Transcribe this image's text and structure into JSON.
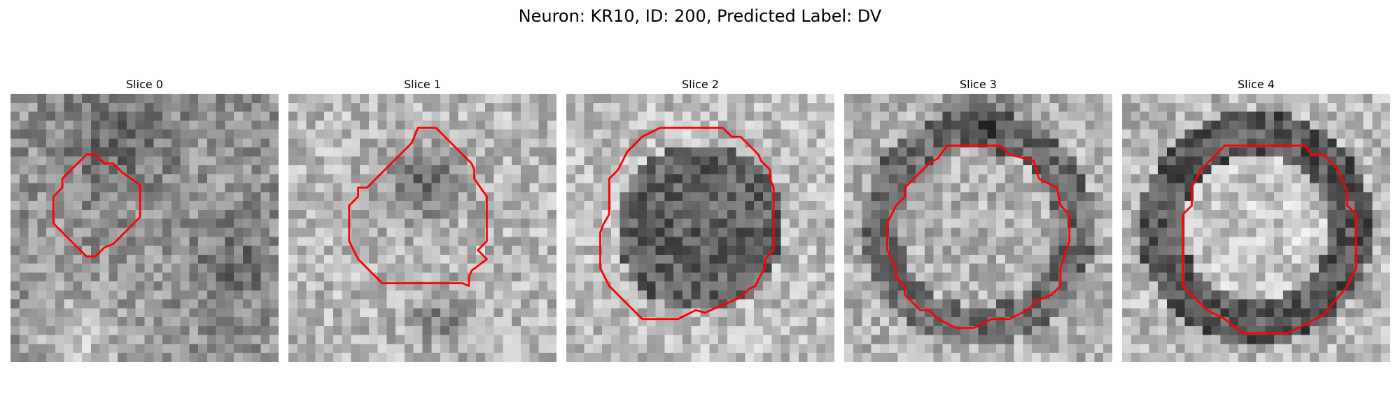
{
  "figure": {
    "title": "Neuron: KR10, ID: 200, Predicted Label: DV"
  },
  "colors": {
    "contour": "#ff0000",
    "background": "#ffffff"
  },
  "image_grid": {
    "pixels_per_side": 30,
    "colormap": "gray"
  },
  "panels": [
    {
      "title": "Slice 0",
      "contour": [
        [
          8.5,
          6.8
        ],
        [
          9.5,
          6.8
        ],
        [
          10.5,
          7.8
        ],
        [
          11.5,
          7.8
        ],
        [
          12.5,
          8.8
        ],
        [
          14.5,
          10.2
        ],
        [
          14.5,
          13.8
        ],
        [
          11.5,
          16.8
        ],
        [
          10.5,
          17.2
        ],
        [
          9.5,
          18.2
        ],
        [
          8.5,
          18.2
        ],
        [
          5.5,
          15.2
        ],
        [
          4.8,
          14.5
        ],
        [
          4.8,
          11.5
        ],
        [
          5.8,
          10.5
        ],
        [
          5.8,
          9.5
        ]
      ]
    },
    {
      "title": "Slice 1",
      "contour": [
        [
          14.5,
          3.8
        ],
        [
          16.5,
          3.8
        ],
        [
          20.5,
          7.8
        ],
        [
          20.8,
          8.5
        ],
        [
          20.8,
          9.5
        ],
        [
          22.2,
          11.5
        ],
        [
          22.2,
          16.5
        ],
        [
          21.5,
          17.2
        ],
        [
          21.2,
          17.5
        ],
        [
          22.2,
          18.5
        ],
        [
          20.5,
          19.8
        ],
        [
          20.2,
          20.5
        ],
        [
          20.2,
          21.5
        ],
        [
          19.5,
          21.2
        ],
        [
          10.5,
          21.2
        ],
        [
          8.8,
          19.5
        ],
        [
          7.8,
          18.5
        ],
        [
          6.8,
          16.5
        ],
        [
          6.8,
          12.5
        ],
        [
          7.8,
          11.5
        ],
        [
          7.8,
          10.5
        ],
        [
          8.8,
          10.5
        ],
        [
          13.8,
          5.5
        ]
      ]
    },
    {
      "title": "Slice 2",
      "contour": [
        [
          10.5,
          3.8
        ],
        [
          17.5,
          3.8
        ],
        [
          18.5,
          4.8
        ],
        [
          19.5,
          4.8
        ],
        [
          21.5,
          6.8
        ],
        [
          21.8,
          7.5
        ],
        [
          22.8,
          8.5
        ],
        [
          22.8,
          9.5
        ],
        [
          23.2,
          10.5
        ],
        [
          23.2,
          17.5
        ],
        [
          22.2,
          18.5
        ],
        [
          22.2,
          19.5
        ],
        [
          21.5,
          20.8
        ],
        [
          21.2,
          21.5
        ],
        [
          20.5,
          21.8
        ],
        [
          19.5,
          22.8
        ],
        [
          18.5,
          23.2
        ],
        [
          15.5,
          24.5
        ],
        [
          14.5,
          24.2
        ],
        [
          12.5,
          25.2
        ],
        [
          8.5,
          25.2
        ],
        [
          7.5,
          24.2
        ],
        [
          4.8,
          21.5
        ],
        [
          3.8,
          19.5
        ],
        [
          3.8,
          15.5
        ],
        [
          4.2,
          14.5
        ],
        [
          4.8,
          13.5
        ],
        [
          4.8,
          9.5
        ],
        [
          5.8,
          8.5
        ],
        [
          6.8,
          6.5
        ],
        [
          8.5,
          4.8
        ]
      ]
    },
    {
      "title": "Slice 3",
      "contour": [
        [
          11.5,
          5.8
        ],
        [
          17.5,
          5.8
        ],
        [
          18.5,
          6.8
        ],
        [
          21.2,
          7.5
        ],
        [
          21.8,
          9.5
        ],
        [
          23.8,
          10.5
        ],
        [
          24.2,
          12.5
        ],
        [
          25.2,
          13.5
        ],
        [
          25.2,
          16.5
        ],
        [
          24.2,
          19.5
        ],
        [
          24.2,
          21.5
        ],
        [
          23.2,
          22.5
        ],
        [
          21.5,
          23.2
        ],
        [
          20.5,
          24.2
        ],
        [
          18.5,
          25.2
        ],
        [
          16.5,
          25.2
        ],
        [
          14.5,
          26.2
        ],
        [
          12.5,
          26.2
        ],
        [
          10.5,
          25.2
        ],
        [
          9.5,
          24.2
        ],
        [
          8.5,
          24.2
        ],
        [
          6.8,
          22.5
        ],
        [
          6.8,
          21.5
        ],
        [
          5.8,
          20.5
        ],
        [
          5.8,
          19.5
        ],
        [
          4.8,
          17.5
        ],
        [
          4.8,
          14.5
        ],
        [
          5.8,
          12.5
        ],
        [
          6.8,
          11.5
        ],
        [
          6.8,
          10.5
        ],
        [
          7.8,
          9.5
        ],
        [
          8.8,
          8.5
        ],
        [
          9.5,
          7.8
        ],
        [
          10.5,
          7.2
        ]
      ]
    },
    {
      "title": "Slice 4",
      "contour": [
        [
          11.5,
          5.8
        ],
        [
          20.5,
          5.8
        ],
        [
          21.2,
          6.8
        ],
        [
          22.5,
          6.8
        ],
        [
          24.2,
          8.5
        ],
        [
          24.5,
          9.5
        ],
        [
          25.2,
          10.8
        ],
        [
          25.2,
          12.5
        ],
        [
          26.2,
          13.5
        ],
        [
          26.2,
          19.5
        ],
        [
          25.2,
          21.5
        ],
        [
          22.5,
          24.8
        ],
        [
          18.5,
          26.8
        ],
        [
          13.5,
          26.8
        ],
        [
          11.5,
          25.2
        ],
        [
          9.5,
          24.2
        ],
        [
          7.8,
          22.5
        ],
        [
          6.8,
          21.5
        ],
        [
          6.8,
          13.5
        ],
        [
          7.8,
          12.5
        ],
        [
          7.8,
          10.5
        ],
        [
          8.8,
          8.5
        ],
        [
          9.5,
          7.8
        ],
        [
          10.5,
          6.8
        ]
      ]
    }
  ]
}
